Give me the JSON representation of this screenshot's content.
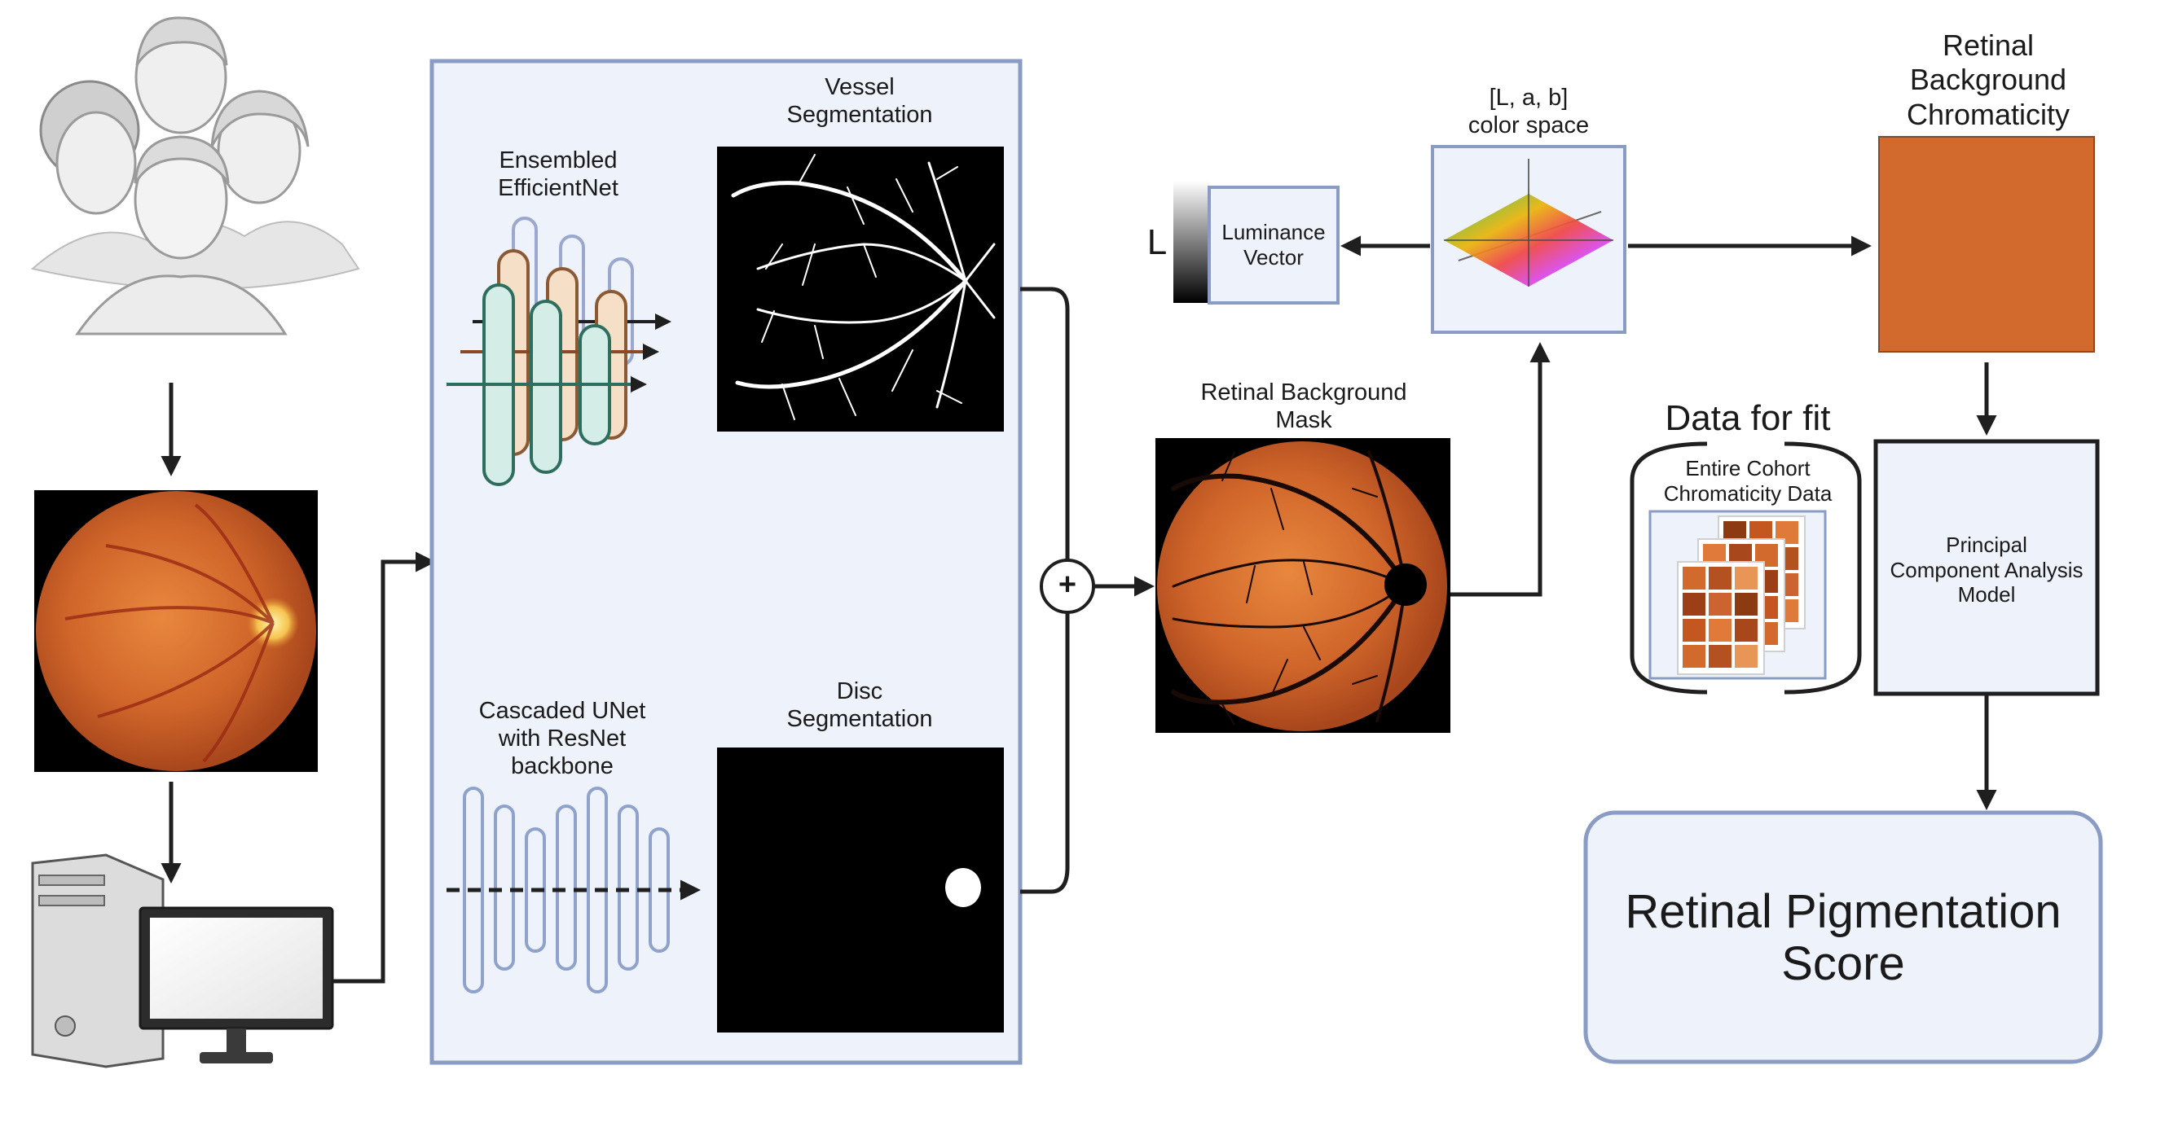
{
  "pipeline": {
    "ensembled": "Ensembled\nEfficientNet",
    "vessel_seg": "Vessel\nSegmentation",
    "cascaded": "Cascaded UNet\nwith ResNet\nbackbone",
    "disc_seg": "Disc\nSegmentation",
    "combine_symbol": "+"
  },
  "mask": {
    "title": "Retinal Background\nMask"
  },
  "colorspace": {
    "title": "[L, a, b]\ncolor space",
    "luminance": "Luminance\nVector",
    "l_label": "L"
  },
  "chromaticity": {
    "title": "Retinal\nBackground\nChromaticity",
    "swatch_color": "#D2692D"
  },
  "fit": {
    "title": "Data for fit",
    "cohort": "Entire Cohort\nChromaticity Data"
  },
  "pca": {
    "label": "Principal\nComponent Analysis\nModel"
  },
  "score": {
    "label": "Retinal Pigmentation\nScore"
  },
  "colors": {
    "panel_fill": "#EEF2FA",
    "panel_border": "#8A9CC4",
    "arrow": "#1f1f1f",
    "fundus": "#D96B2E",
    "chromaticity": "#D2692D"
  }
}
